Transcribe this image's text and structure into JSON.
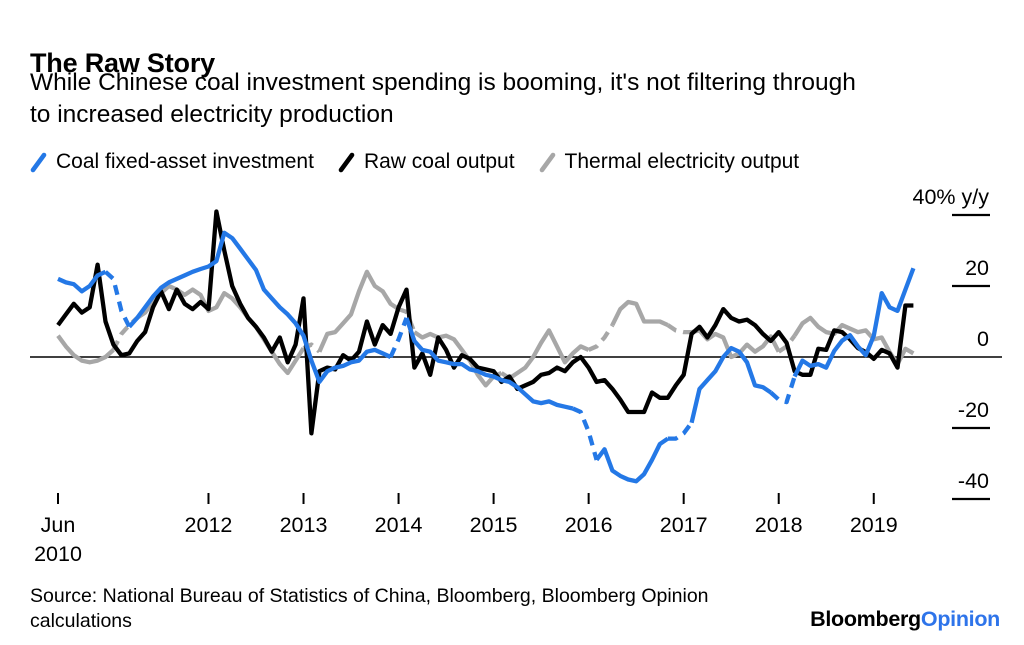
{
  "header": {
    "title": "The Raw Story",
    "subtitle_line1": "While Chinese coal investment spending is booming, it's not filtering through",
    "subtitle_line2": "to increased electricity production"
  },
  "legend": {
    "items": [
      {
        "id": "coal-fixed-asset-investment",
        "label": "Coal fixed-asset investment",
        "color": "#2478e6"
      },
      {
        "id": "raw-coal-output",
        "label": "Raw coal output",
        "color": "#000000"
      },
      {
        "id": "thermal-electricity-output",
        "label": "Thermal electricity output",
        "color": "#a7a7a7"
      }
    ]
  },
  "chart_data": {
    "type": "line",
    "unit": "% y/y",
    "x_start": "2010-06",
    "x_end": "2019-06",
    "x_frequency": "monthly",
    "ylim": [
      -45,
      43
    ],
    "grid": false,
    "y_axis": {
      "ticks": [
        {
          "value": 40,
          "label": "40% y/y",
          "dash": true
        },
        {
          "value": 20,
          "label": "20",
          "dash": true
        },
        {
          "value": 0,
          "label": "0",
          "dash": false
        },
        {
          "value": -20,
          "label": "-20",
          "dash": true
        },
        {
          "value": -40,
          "label": "-40",
          "dash": true
        }
      ]
    },
    "x_axis": {
      "ticks": [
        {
          "month_index": 0,
          "line1": "Jun",
          "line2": "2010"
        },
        {
          "month_index": 19,
          "line1": "2012"
        },
        {
          "month_index": 31,
          "line1": "2013"
        },
        {
          "month_index": 43,
          "line1": "2014"
        },
        {
          "month_index": 55,
          "line1": "2015"
        },
        {
          "month_index": 67,
          "line1": "2016"
        },
        {
          "month_index": 79,
          "line1": "2017"
        },
        {
          "month_index": 91,
          "line1": "2018"
        },
        {
          "month_index": 103,
          "line1": "2019"
        }
      ]
    },
    "series": [
      {
        "id": "thermal-electricity-output",
        "name": "Thermal electricity output",
        "color": "#a7a7a7",
        "dash_ranges": [
          [
            7,
            10
          ],
          [
            31,
            33
          ],
          [
            43,
            45
          ],
          [
            55,
            56
          ],
          [
            67,
            70
          ],
          [
            77,
            80
          ],
          [
            91,
            93
          ]
        ],
        "values": [
          6,
          3,
          0.5,
          -1,
          -1.5,
          -1,
          0,
          2,
          6.5,
          9,
          11,
          12.5,
          15.5,
          18,
          20,
          19,
          17.5,
          19,
          17.5,
          13,
          14,
          18,
          16.5,
          14,
          11,
          8.5,
          5,
          1.5,
          -2,
          -4.5,
          -1,
          2.5,
          3.5,
          1.5,
          6.5,
          7,
          9.5,
          12,
          18.5,
          24,
          20,
          18.5,
          15,
          13.5,
          12.7,
          7,
          5.5,
          6.5,
          5.5,
          6,
          5,
          2,
          -1,
          -5,
          -8,
          -5.5,
          -4.5,
          -6,
          -4.5,
          -3,
          0,
          4,
          7.5,
          3,
          -1.5,
          1,
          3,
          2,
          3,
          5.5,
          9,
          13.5,
          15.5,
          15,
          10,
          10,
          10,
          9,
          7.5,
          7,
          7,
          7.5,
          5,
          6.5,
          5.5,
          0,
          1,
          3.5,
          1.5,
          3,
          5.8,
          1.5,
          3,
          6,
          9.5,
          11,
          8.5,
          7,
          6.5,
          9,
          8,
          7,
          7.5,
          5,
          5.5,
          1.4,
          -2,
          2.3,
          1
        ]
      },
      {
        "id": "raw-coal-output",
        "name": "Raw coal output",
        "color": "#000000",
        "dash_ranges": [],
        "values": [
          9,
          12,
          15,
          12.5,
          14,
          26,
          10,
          3.5,
          0.5,
          1,
          4.5,
          7,
          14,
          18.5,
          13.5,
          19,
          15,
          13.5,
          15.5,
          13.5,
          41,
          30,
          20,
          15,
          11,
          8.5,
          5.5,
          1.5,
          5.5,
          -1.5,
          3.5,
          16.5,
          -21.5,
          -4,
          -3,
          -3.5,
          0.5,
          -1,
          1.5,
          10,
          3.5,
          9,
          6.5,
          14,
          19,
          -3,
          1,
          -5,
          5.5,
          2,
          -3,
          0.5,
          -0.5,
          -3,
          -3.5,
          -4,
          -7,
          -5.5,
          -9,
          -8,
          -7,
          -5,
          -4.5,
          -3,
          -4,
          -1.5,
          0,
          -3,
          -7,
          -6.5,
          -9,
          -12,
          -15.5,
          -15.5,
          -15.5,
          -10,
          -11.5,
          -11.5,
          -8,
          -5,
          6.5,
          8.5,
          5.5,
          9,
          13.5,
          11,
          10,
          10.5,
          9,
          6.5,
          4.5,
          7,
          4,
          -4,
          -5,
          -5,
          2.3,
          2,
          7.5,
          7,
          5,
          2.5,
          1.4,
          -0.5,
          2,
          1,
          -3,
          14.5,
          14.5
        ]
      },
      {
        "id": "coal-fixed-asset-investment",
        "name": "Coal fixed-asset investment",
        "color": "#2478e6",
        "dash_ranges": [
          [
            6,
            9
          ],
          [
            42,
            44
          ],
          [
            65,
            68
          ],
          [
            77,
            80
          ],
          [
            90,
            93
          ]
        ],
        "values": [
          22,
          21,
          20.5,
          18.5,
          20,
          23,
          24,
          22,
          13,
          8.5,
          11,
          14,
          17,
          19.5,
          21,
          22,
          23,
          24,
          24.8,
          25.5,
          27,
          35,
          33.5,
          30.5,
          27.5,
          24.5,
          19,
          16.5,
          14,
          12,
          9.5,
          6,
          -1,
          -7,
          -4,
          -3,
          -2.5,
          -1.5,
          -1,
          1.5,
          2,
          1,
          0,
          5,
          11,
          4.5,
          2,
          1.5,
          -1,
          -1.5,
          -2,
          -2,
          -3.5,
          -4,
          -5,
          -5.5,
          -6.5,
          -7,
          -8.5,
          -10.5,
          -12.5,
          -13,
          -12.5,
          -13.5,
          -14,
          -14.5,
          -15.5,
          -21,
          -29,
          -26,
          -32,
          -33.5,
          -34.5,
          -35,
          -33,
          -29,
          -24.5,
          -23,
          -23,
          -21.5,
          -18.5,
          -9,
          -6.5,
          -4,
          0,
          2.5,
          1.5,
          -1.5,
          -8,
          -8.5,
          -10,
          -12,
          -12.7,
          -5.5,
          -1,
          -2.5,
          -2,
          -3,
          1.7,
          4.6,
          6.1,
          3,
          0.5,
          6,
          18,
          14,
          13,
          19,
          25
        ]
      }
    ]
  },
  "source": {
    "line1": "Source: National Bureau of Statistics of China, Bloomberg, Bloomberg Opinion",
    "line2": "calculations"
  },
  "logo": {
    "part1": "Bloomberg",
    "part2": "Opinion",
    "part2_color": "#2e74ea"
  }
}
